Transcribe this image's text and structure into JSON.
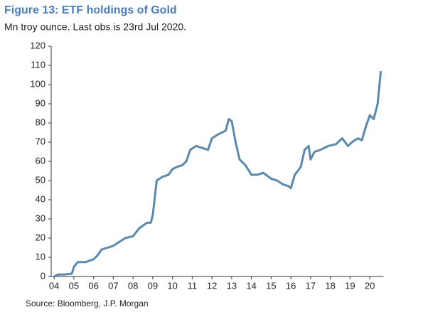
{
  "chart_data": {
    "type": "line",
    "title": "Figure 13: ETF holdings of Gold",
    "subtitle": "Mn troy ounce. Last obs is 23rd Jul 2020.",
    "source": "Source: Bloomberg, J.P. Morgan",
    "x": [
      2004.0,
      2004.2,
      2004.5,
      2004.9,
      2005.0,
      2005.2,
      2005.6,
      2006.0,
      2006.2,
      2006.4,
      2006.7,
      2007.0,
      2007.3,
      2007.6,
      2008.0,
      2008.3,
      2008.7,
      2008.9,
      2009.0,
      2009.2,
      2009.5,
      2009.8,
      2010.0,
      2010.2,
      2010.5,
      2010.7,
      2010.9,
      2011.2,
      2011.5,
      2011.8,
      2012.0,
      2012.3,
      2012.5,
      2012.7,
      2012.85,
      2013.0,
      2013.2,
      2013.4,
      2013.7,
      2014.0,
      2014.3,
      2014.6,
      2015.0,
      2015.3,
      2015.6,
      2015.9,
      2016.0,
      2016.2,
      2016.5,
      2016.7,
      2016.9,
      2017.0,
      2017.2,
      2017.5,
      2017.9,
      2018.3,
      2018.6,
      2018.9,
      2019.1,
      2019.4,
      2019.6,
      2019.8,
      2020.0,
      2020.2,
      2020.4,
      2020.56
    ],
    "series": [
      {
        "name": "ETF holdings of Gold",
        "color": "#5b88ad",
        "values": [
          0,
          1,
          1,
          1.5,
          5,
          7.5,
          7.5,
          9,
          11,
          14,
          15,
          16,
          18,
          20,
          21,
          25,
          28,
          28,
          32,
          50,
          52,
          53,
          56,
          57,
          58,
          60,
          66,
          68,
          67,
          66,
          72,
          74,
          75,
          76,
          82,
          81,
          70,
          61,
          58,
          53,
          53,
          54,
          51,
          50,
          48,
          47,
          46,
          53,
          57,
          66,
          68,
          61,
          65,
          66,
          68,
          69,
          72,
          68,
          70,
          72,
          71,
          78,
          84,
          82,
          90,
          107
        ]
      }
    ],
    "xlim": [
      2003.85,
      2020.7
    ],
    "xticks": [
      {
        "value": 2004,
        "label": "04"
      },
      {
        "value": 2005,
        "label": "05"
      },
      {
        "value": 2006,
        "label": "06"
      },
      {
        "value": 2007,
        "label": "07"
      },
      {
        "value": 2008,
        "label": "08"
      },
      {
        "value": 2009,
        "label": "09"
      },
      {
        "value": 2010,
        "label": "10"
      },
      {
        "value": 2011,
        "label": "11"
      },
      {
        "value": 2012,
        "label": "12"
      },
      {
        "value": 2013,
        "label": "13"
      },
      {
        "value": 2014,
        "label": "14"
      },
      {
        "value": 2015,
        "label": "15"
      },
      {
        "value": 2016,
        "label": "16"
      },
      {
        "value": 2017,
        "label": "17"
      },
      {
        "value": 2018,
        "label": "18"
      },
      {
        "value": 2019,
        "label": "19"
      },
      {
        "value": 2020,
        "label": "20"
      }
    ],
    "ylim": [
      0,
      120
    ],
    "yticks": [
      0,
      10,
      20,
      30,
      40,
      50,
      60,
      70,
      80,
      90,
      100,
      110,
      120
    ],
    "grid": false
  }
}
